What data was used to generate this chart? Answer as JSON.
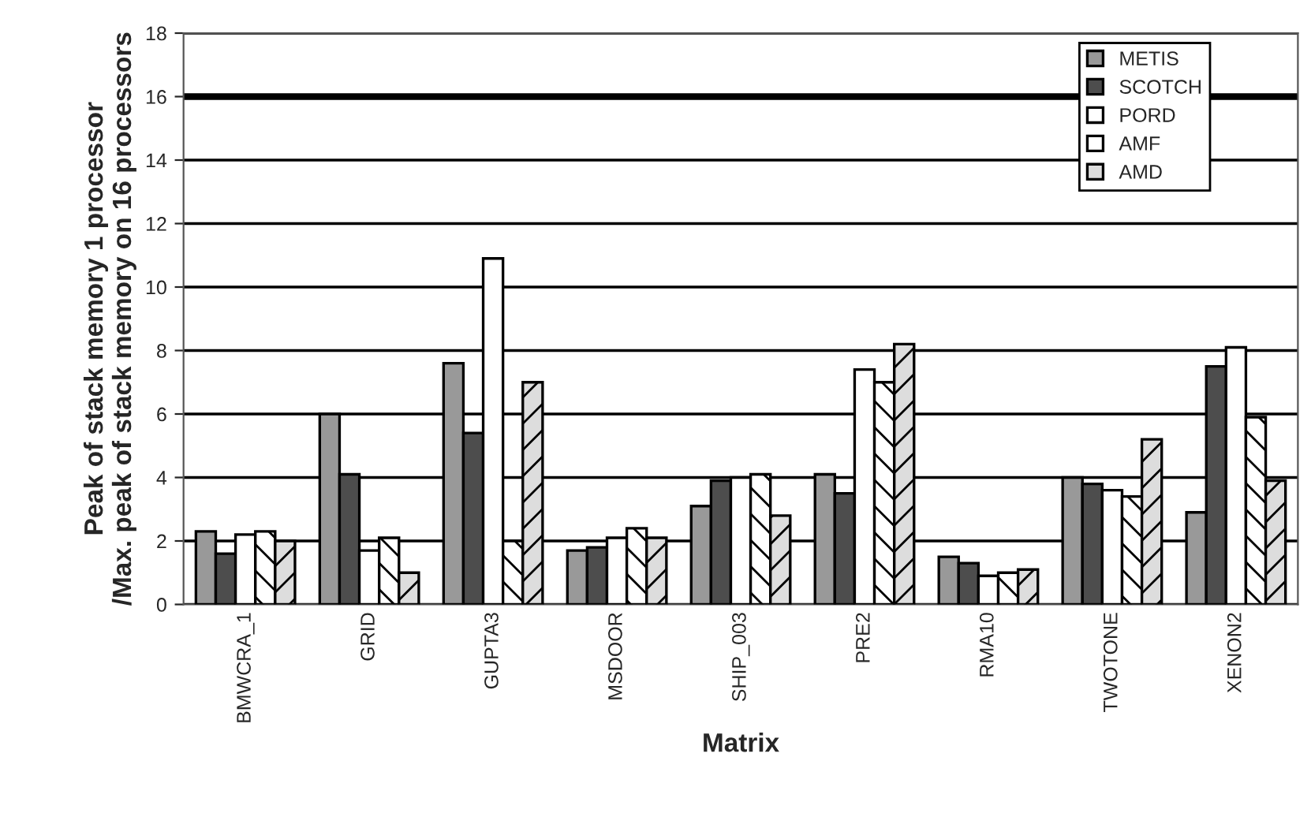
{
  "chart_data": {
    "type": "bar",
    "xlabel": "Matrix",
    "ylabel": "Peak of stack memory 1 processor\n/Max. peak of stack memory on 16 processors",
    "categories": [
      "BMWCRA_1",
      "GRID",
      "GUPTA3",
      "MSDOOR",
      "SHIP_003",
      "PRE2",
      "RMA10",
      "TWOTONE",
      "XENON2"
    ],
    "series": [
      {
        "name": "METIS",
        "color": "#999999",
        "values": [
          2.3,
          6.0,
          7.6,
          1.7,
          3.1,
          4.1,
          1.5,
          4.0,
          2.9
        ]
      },
      {
        "name": "SCOTCH",
        "color": "#4d4d4d",
        "values": [
          1.6,
          4.1,
          5.4,
          1.8,
          3.9,
          3.5,
          1.3,
          3.8,
          7.5
        ]
      },
      {
        "name": "PORD",
        "color": "#ffffff",
        "values": [
          2.2,
          1.7,
          10.9,
          2.1,
          4.0,
          7.4,
          0.9,
          3.6,
          8.1
        ]
      },
      {
        "name": "AMF",
        "color": "#ffffff",
        "values": [
          2.3,
          2.1,
          2.0,
          2.4,
          4.1,
          7.0,
          1.0,
          3.4,
          5.9
        ]
      },
      {
        "name": "AMD",
        "color": "#dddddd",
        "values": [
          2.0,
          1.0,
          7.0,
          2.1,
          2.8,
          8.2,
          1.1,
          5.2,
          3.9
        ]
      }
    ],
    "ylim": [
      0,
      18
    ],
    "yticks": [
      0,
      2,
      4,
      6,
      8,
      10,
      12,
      14,
      16,
      18
    ],
    "grid": "y",
    "legend": "top right",
    "ref_lines": [
      {
        "axis": "y",
        "value": 16,
        "color": "#000000"
      }
    ]
  }
}
